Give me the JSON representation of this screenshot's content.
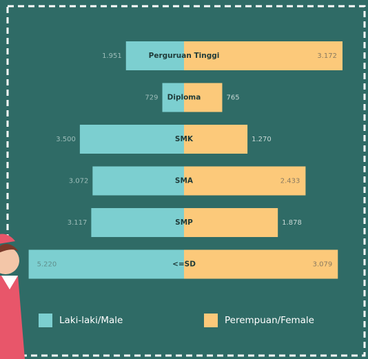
{
  "chart_data": {
    "type": "bar",
    "orientation": "horizontal-butterfly",
    "categories": [
      "Perguruan Tinggi",
      "Diploma",
      "SMK",
      "SMA",
      "SMP",
      "<=SD"
    ],
    "series": [
      {
        "name": "Laki-laki/Male",
        "color": "#7ccfd0",
        "values": [
          1951,
          729,
          3500,
          3072,
          3117,
          5220
        ],
        "value_labels": [
          "1.951",
          "729",
          "3.500",
          "3.072",
          "3.117",
          "5.220"
        ]
      },
      {
        "name": "Perempuan/Female",
        "color": "#fcc97a",
        "values": [
          3172,
          765,
          1270,
          2433,
          1878,
          3079
        ],
        "value_labels": [
          "3.172",
          "765",
          "1.270",
          "2.433",
          "1.878",
          "3.079"
        ]
      }
    ]
  }
}
